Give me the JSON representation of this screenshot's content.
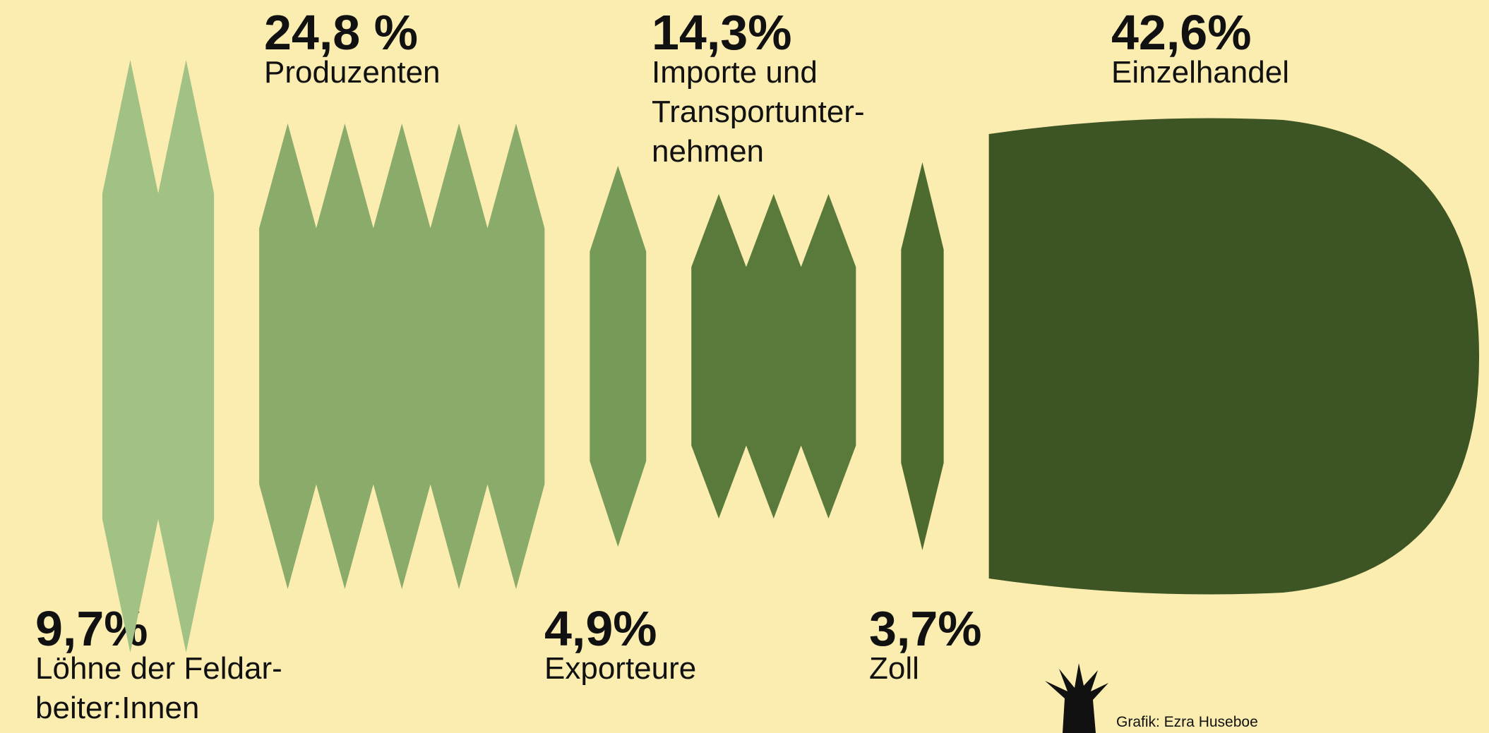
{
  "chart_data": {
    "type": "bar",
    "categories": [
      "Löhne der Feldar-\nbeiter:Innen",
      "Produzenten",
      "Exporteure",
      "Importe und\nTransportunter-\nnehmen",
      "Zoll",
      "Einzelhandel"
    ],
    "values": [
      9.7,
      24.8,
      4.9,
      14.3,
      3.7,
      42.6
    ],
    "value_labels": [
      "9,7%",
      "24,8 %",
      "4,9%",
      "14,3%",
      "3,7%",
      "42,6%"
    ],
    "colors": [
      "#a2c285",
      "#8aab6a",
      "#769a58",
      "#5a7a3c",
      "#4d6a2f",
      "#3d5425"
    ],
    "credit": "Grafik: Ezra Huseboe"
  }
}
